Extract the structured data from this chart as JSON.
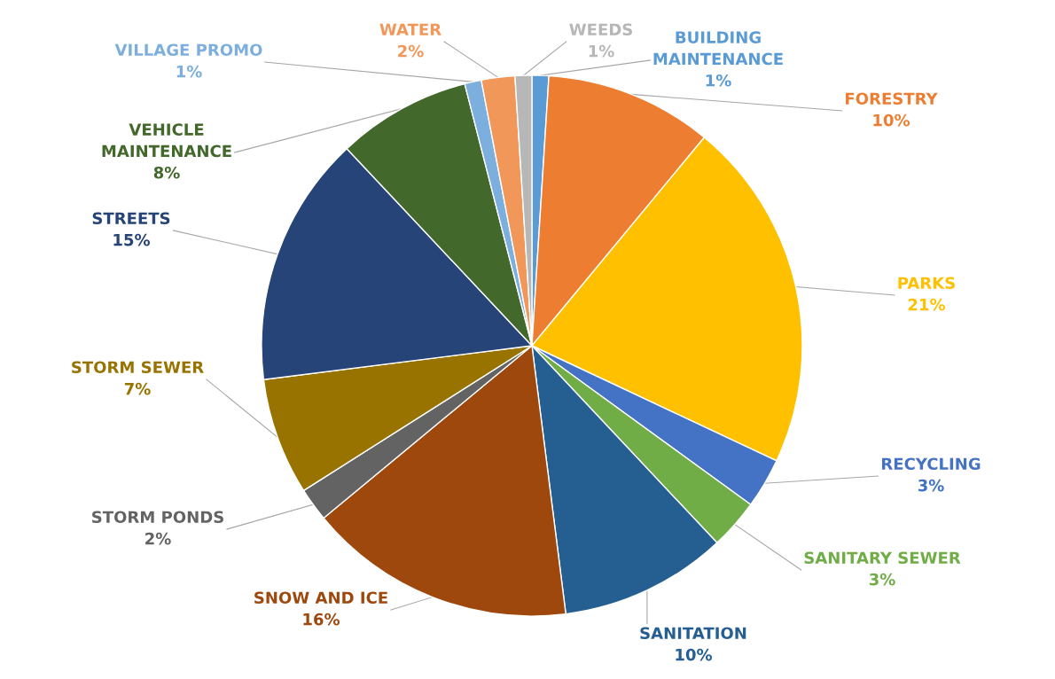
{
  "chart_data": {
    "type": "pie",
    "categories": [
      "BUILDING MAINTENANCE",
      "FORESTRY",
      "PARKS",
      "RECYCLING",
      "SANITARY SEWER",
      "SANITATION",
      "SNOW AND ICE",
      "STORM PONDS",
      "STORM SEWER",
      "STREETS",
      "VEHICLE MAINTENANCE",
      "VILLAGE PROMO",
      "WATER",
      "WEEDS"
    ],
    "values": [
      1,
      10,
      21,
      3,
      3,
      10,
      16,
      2,
      7,
      15,
      8,
      1,
      2,
      1
    ],
    "value_labels": [
      "1%",
      "10%",
      "21%",
      "3%",
      "3%",
      "10%",
      "16%",
      "2%",
      "7%",
      "15%",
      "8%",
      "1%",
      "2%",
      "1%"
    ],
    "colors": [
      "#5b9bd5",
      "#ed7d31",
      "#ffc000",
      "#4472c4",
      "#70ad47",
      "#255e91",
      "#9e480e",
      "#636363",
      "#997300",
      "#264478",
      "#43682b",
      "#7cafdd",
      "#f1975a",
      "#b7b7b7"
    ]
  }
}
